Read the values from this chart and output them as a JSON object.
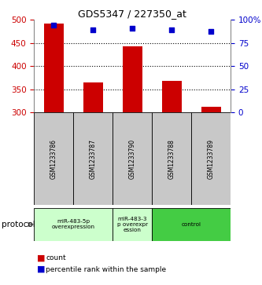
{
  "title": "GDS5347 / 227350_at",
  "samples": [
    "GSM1233786",
    "GSM1233787",
    "GSM1233790",
    "GSM1233788",
    "GSM1233789"
  ],
  "counts": [
    493,
    365,
    443,
    368,
    313
  ],
  "percentiles": [
    94,
    89,
    91,
    89,
    88
  ],
  "ylim_left": [
    300,
    500
  ],
  "ylim_right": [
    0,
    100
  ],
  "yticks_left": [
    300,
    350,
    400,
    450,
    500
  ],
  "yticks_right": [
    0,
    25,
    50,
    75,
    100
  ],
  "right_tick_labels": [
    "0",
    "25",
    "50",
    "75",
    "100%"
  ],
  "bar_color": "#cc0000",
  "dot_color": "#0000cc",
  "bar_bottom": 300,
  "protocol_groups": [
    {
      "label": "miR-483-5p\noverexpression",
      "span": [
        0,
        2
      ],
      "color": "#ccffcc"
    },
    {
      "label": "miR-483-3\np overexpr\nession",
      "span": [
        2,
        3
      ],
      "color": "#ccffcc"
    },
    {
      "label": "control",
      "span": [
        3,
        5
      ],
      "color": "#44cc44"
    }
  ],
  "grid_yticks": [
    350,
    400,
    450
  ],
  "bg_color": "#ffffff",
  "table_bg_color": "#c8c8c8",
  "legend_count_label": "count",
  "legend_pct_label": "percentile rank within the sample",
  "left_axis_color": "#cc0000",
  "right_axis_color": "#0000cc",
  "protocol_label": "protocol",
  "dot_size": 14
}
